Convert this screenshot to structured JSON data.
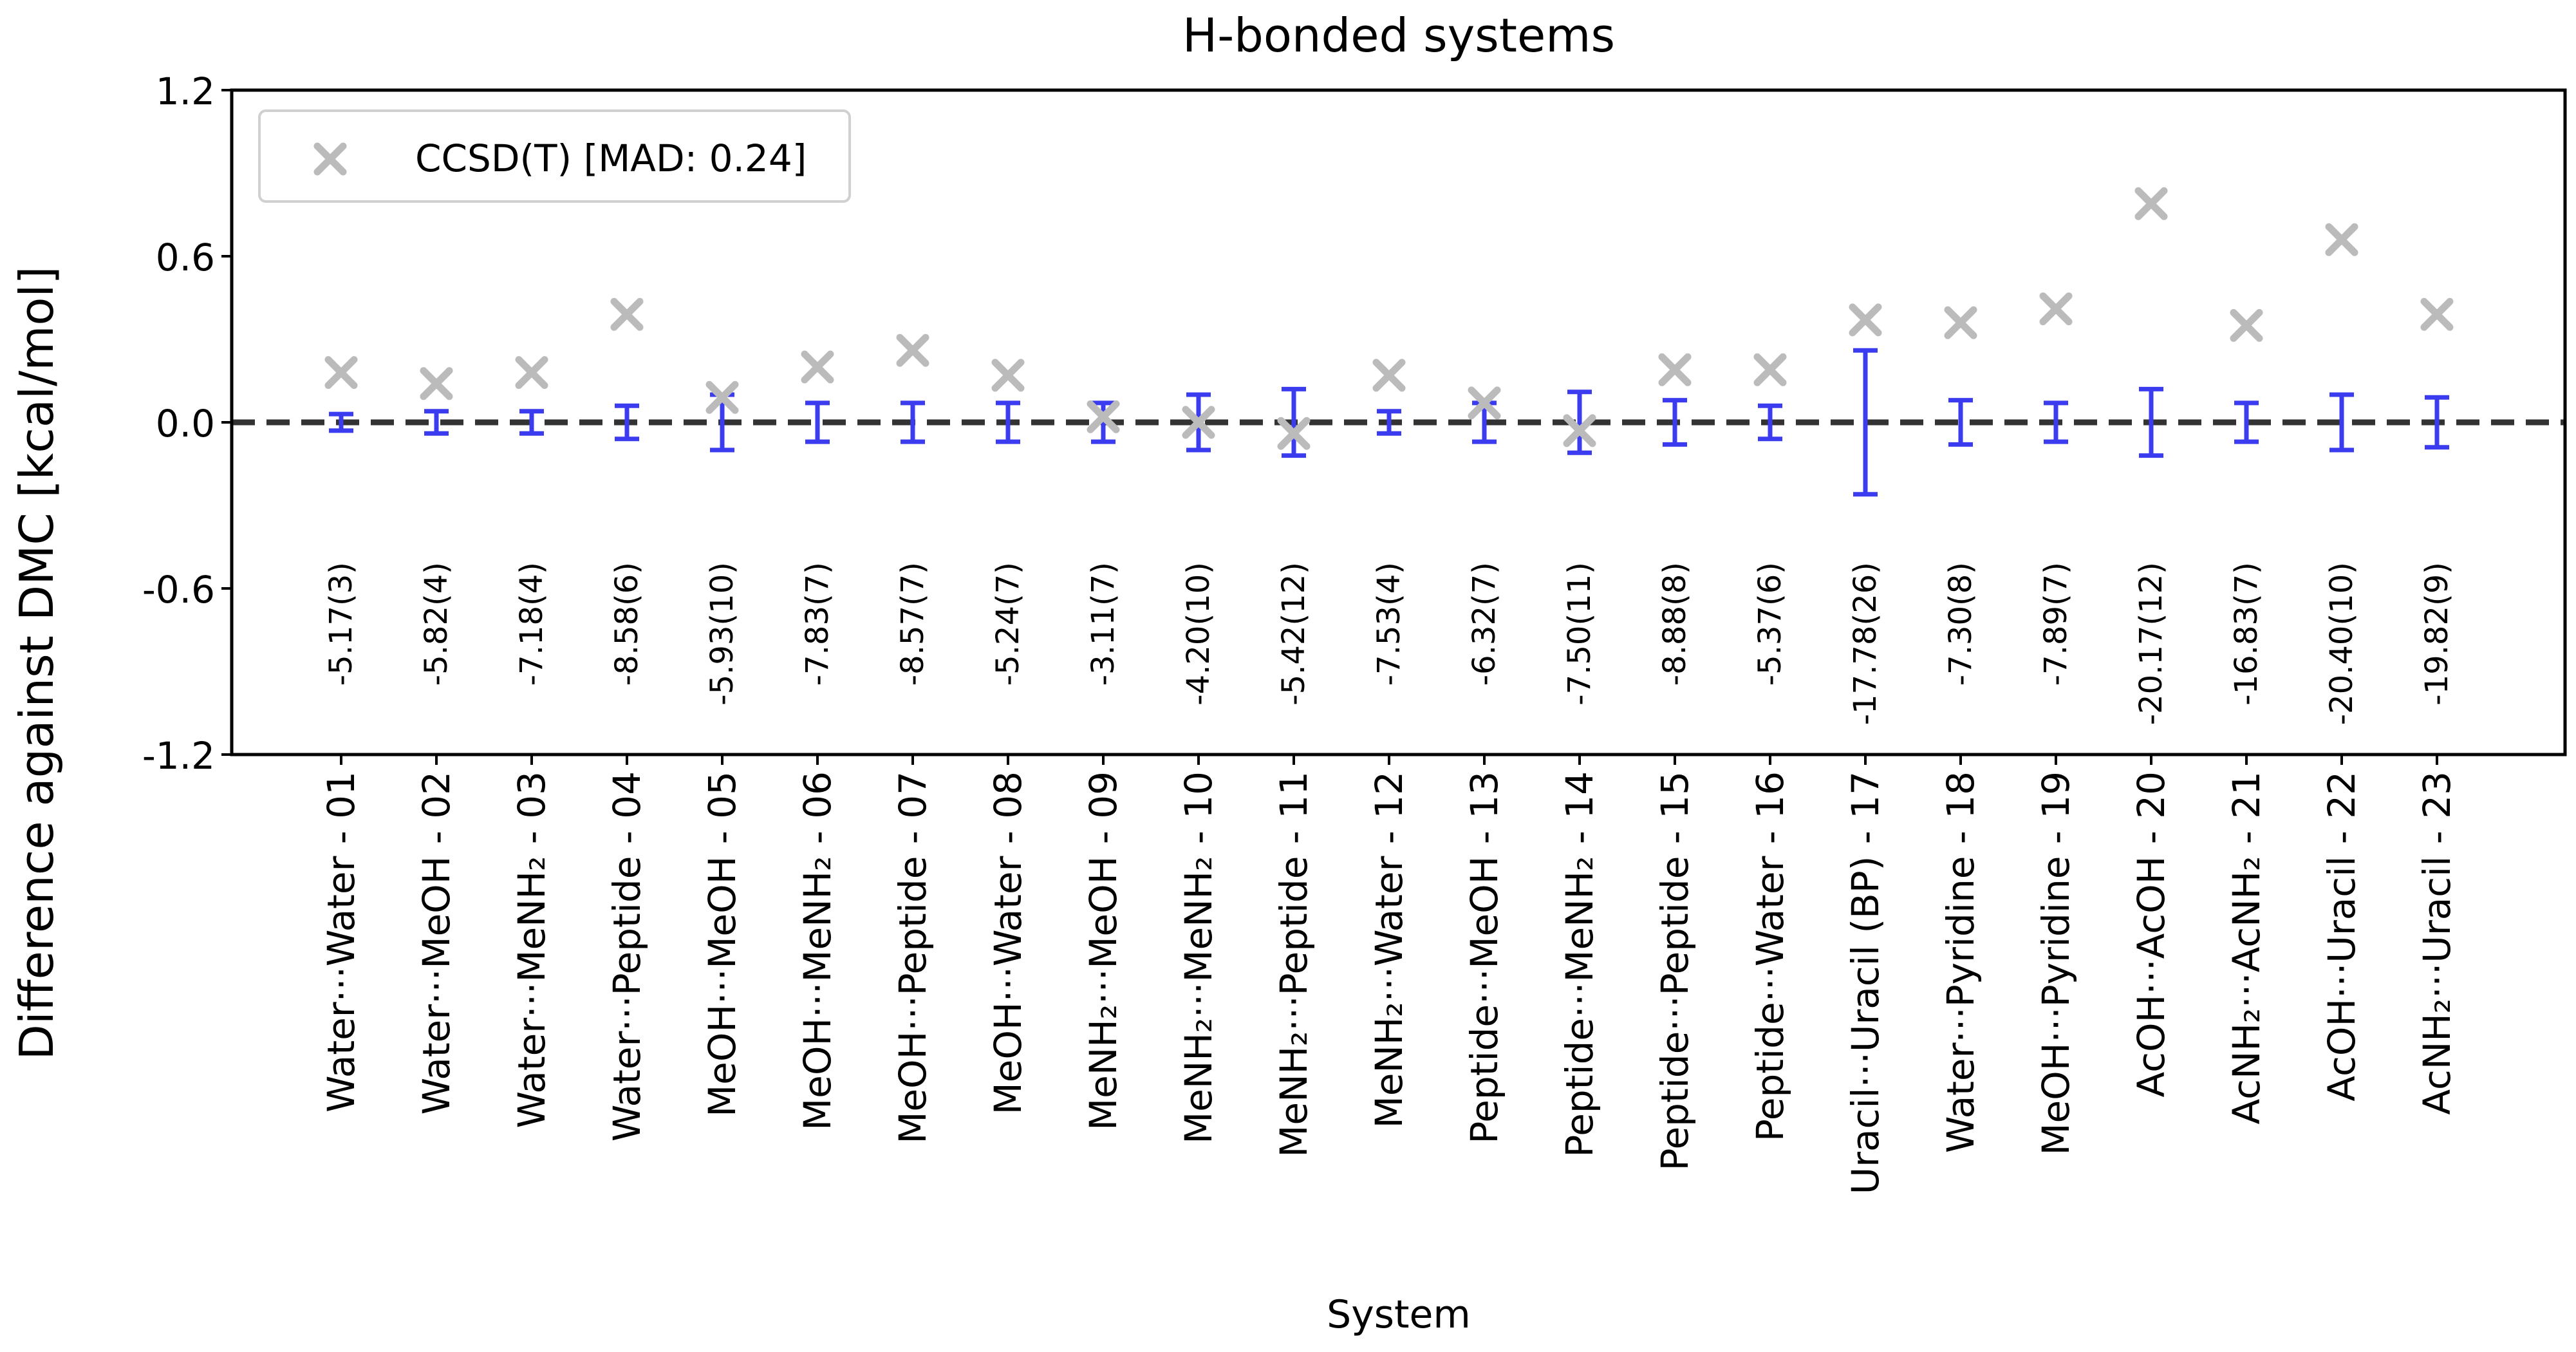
{
  "chart_data": {
    "type": "scatter",
    "title": "H-bonded systems",
    "xlabel": "System",
    "ylabel": "Difference against DMC [kcal/mol]",
    "ylim": [
      -1.2,
      1.2
    ],
    "yticks": [
      "1.2",
      "0.6",
      "0.0",
      "-0.6",
      "-1.2"
    ],
    "grid": false,
    "legend": {
      "placement": "top-left",
      "entries": [
        {
          "label": "CCSD(T) [MAD: 0.24]",
          "marker": "x",
          "color": "#bbbbbb"
        }
      ]
    },
    "reference_line": {
      "y": 0.0,
      "style": "dashed",
      "color": "#333333"
    },
    "colors": {
      "ccsdt": "#bbbbbb",
      "dmc_error": "#3b3bef",
      "zero_line": "#333333"
    },
    "categories": [
      "Water···Water - 01",
      "Water···MeOH - 02",
      "Water···MeNH₂ - 03",
      "Water···Peptide - 04",
      "MeOH···MeOH - 05",
      "MeOH···MeNH₂ - 06",
      "MeOH···Peptide - 07",
      "MeOH···Water - 08",
      "MeNH₂···MeOH - 09",
      "MeNH₂···MeNH₂ - 10",
      "MeNH₂···Peptide - 11",
      "MeNH₂···Water - 12",
      "Peptide···MeOH - 13",
      "Peptide···MeNH₂ - 14",
      "Peptide···Peptide - 15",
      "Peptide···Water - 16",
      "Uracil···Uracil (BP) - 17",
      "Water···Pyridine - 18",
      "MeOH···Pyridine - 19",
      "AcOH···AcOH - 20",
      "AcNH₂···AcNH₂ - 21",
      "AcOH···Uracil - 22",
      "AcNH₂···Uracil - 23"
    ],
    "series": [
      {
        "name": "CCSD(T) [MAD: 0.24]",
        "marker": "x",
        "values": [
          0.18,
          0.14,
          0.18,
          0.39,
          0.09,
          0.2,
          0.26,
          0.17,
          0.02,
          0.0,
          -0.04,
          0.17,
          0.07,
          -0.03,
          0.19,
          0.19,
          0.37,
          0.36,
          0.41,
          0.79,
          0.35,
          0.66,
          0.39
        ]
      },
      {
        "marker": "errorbar",
        "values": [
          0,
          0,
          0,
          0,
          0,
          0,
          0,
          0,
          0,
          0,
          0,
          0,
          0,
          0,
          0,
          0,
          0,
          0,
          0,
          0,
          0,
          0,
          0
        ],
        "errors": [
          0.03,
          0.04,
          0.04,
          0.06,
          0.1,
          0.07,
          0.07,
          0.07,
          0.07,
          0.1,
          0.12,
          0.04,
          0.07,
          0.11,
          0.08,
          0.06,
          0.26,
          0.08,
          0.07,
          0.12,
          0.07,
          0.1,
          0.09
        ]
      }
    ],
    "annotations": [
      "-5.17(3)",
      "-5.82(4)",
      "-7.18(4)",
      "-8.58(6)",
      "-5.93(10)",
      "-7.83(7)",
      "-8.57(7)",
      "-5.24(7)",
      "-3.11(7)",
      "-4.20(10)",
      "-5.42(12)",
      "-7.53(4)",
      "-6.32(7)",
      "-7.50(11)",
      "-8.88(8)",
      "-5.37(6)",
      "-17.78(26)",
      "-7.30(8)",
      "-7.89(7)",
      "-20.17(12)",
      "-16.83(7)",
      "-20.40(10)",
      "-19.82(9)"
    ]
  }
}
